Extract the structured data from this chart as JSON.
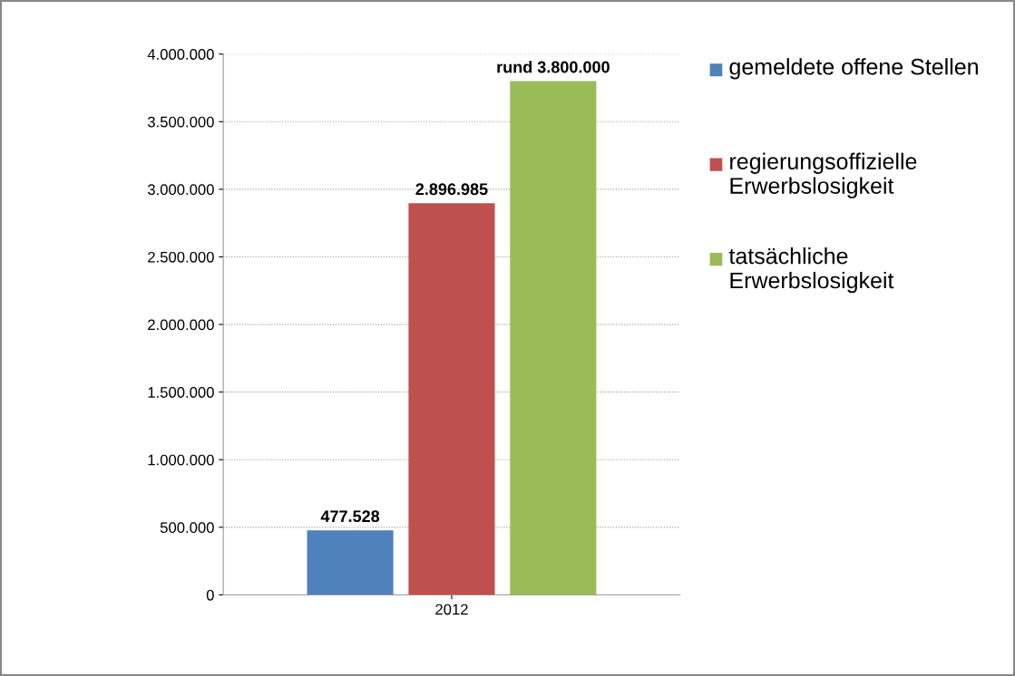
{
  "chart_data": {
    "type": "bar",
    "categories": [
      "2012"
    ],
    "series": [
      {
        "name": "gemeldete offene Stellen",
        "color": "#4f81bd",
        "values": [
          477528
        ],
        "value_labels": [
          "477.528"
        ]
      },
      {
        "name": "regierungsoffizielle Erwerbslosigkeit",
        "color": "#c0504d",
        "values": [
          2896985
        ],
        "value_labels": [
          "2.896.985"
        ]
      },
      {
        "name": "tatsächliche Erwerbslosigkeit",
        "color": "#9bbb59",
        "values": [
          3800000
        ],
        "value_labels": [
          "rund 3.800.000"
        ]
      }
    ],
    "ylim": [
      0,
      4000000
    ],
    "yticks": [
      0,
      {
        "value": 500000,
        "label": "500.000"
      },
      {
        "value": 1000000,
        "label": "1.000.000"
      },
      {
        "value": 1500000,
        "label": "1.500.000"
      },
      {
        "value": 2000000,
        "label": "2.000.000"
      },
      {
        "value": 2500000,
        "label": "2.500.000"
      },
      {
        "value": 3000000,
        "label": "3.000.000"
      },
      {
        "value": 3500000,
        "label": "3.500.000"
      },
      {
        "value": 4000000,
        "label": "4.000.000"
      }
    ],
    "grid": "y",
    "legend": "right"
  }
}
